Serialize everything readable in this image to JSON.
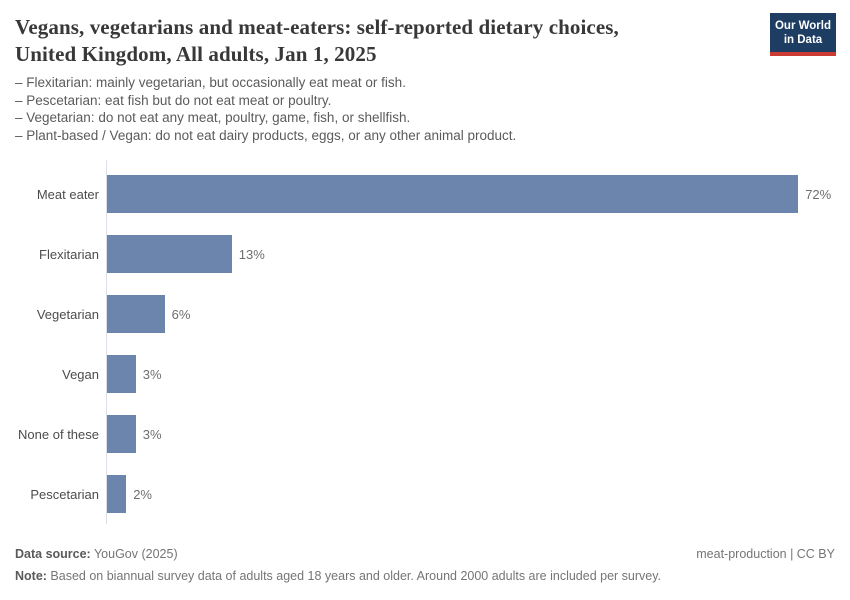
{
  "header": {
    "title_lines": [
      "Vegans, vegetarians and meat-eaters: self-reported dietary choices,",
      "United Kingdom, All adults, Jan 1, 2025"
    ],
    "subtitle_lines": [
      "– Flexitarian: mainly vegetarian, but occasionally eat meat or fish.",
      "– Pescetarian: eat fish but do not eat meat or poultry.",
      "– Vegetarian: do not eat any meat, poultry, game, fish, or shellfish.",
      "– Plant-based / Vegan: do not eat dairy products, eggs, or any other animal product."
    ],
    "logo": {
      "line1": "Our World",
      "line2": "in Data",
      "bg_color": "#1d3d63",
      "accent_color": "#cc3b33",
      "text_color": "#ffffff"
    }
  },
  "chart_data": {
    "type": "bar",
    "orientation": "horizontal",
    "title": "Vegans, vegetarians and meat-eaters: self-reported dietary choices, United Kingdom, All adults, Jan 1, 2025",
    "categories": [
      "Meat eater",
      "Flexitarian",
      "Vegetarian",
      "Vegan",
      "None of these",
      "Pescetarian"
    ],
    "values": [
      72,
      13,
      6,
      3,
      3,
      2
    ],
    "value_labels": [
      "72%",
      "13%",
      "6%",
      "3%",
      "3%",
      "2%"
    ],
    "unit": "%",
    "xlabel": "",
    "ylabel": "",
    "xlim": [
      0,
      75.6
    ],
    "grid": false,
    "legend": "none",
    "bar_color": "#6c85ac",
    "axis_line_color": "#dbdfe8",
    "category_label_color": "#4c4c4c",
    "value_label_color": "#6e6e6e"
  },
  "footer": {
    "data_source_label": "Data source:",
    "data_source_value": " YouGov (2025)",
    "attribution": "meat-production | CC BY",
    "note_label": "Note:",
    "note_value": " Based on biannual survey data of adults aged 18 years and older. Around 2000 adults are included per survey."
  }
}
